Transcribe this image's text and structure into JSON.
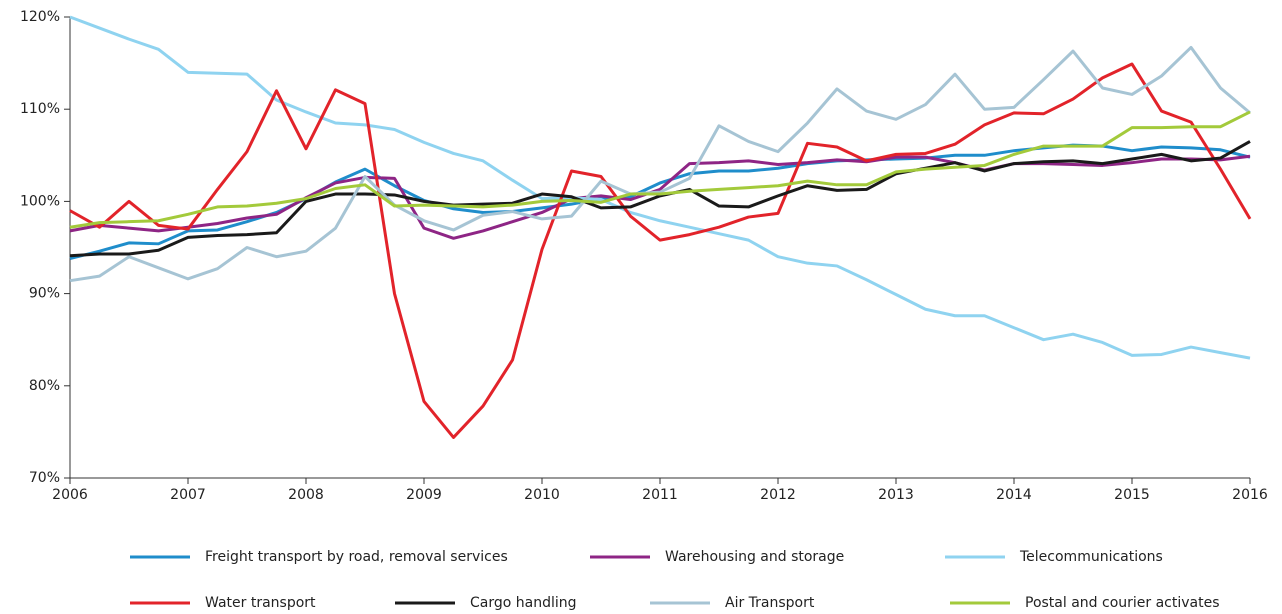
{
  "chart_data": {
    "type": "line",
    "x": [
      2006,
      2006.25,
      2006.5,
      2006.75,
      2007,
      2007.25,
      2007.5,
      2007.75,
      2008,
      2008.25,
      2008.5,
      2008.75,
      2009,
      2009.25,
      2009.5,
      2009.75,
      2010,
      2010.25,
      2010.5,
      2010.75,
      2011,
      2011.25,
      2011.5,
      2011.75,
      2012,
      2012.25,
      2012.5,
      2012.75,
      2013,
      2013.25,
      2013.5,
      2013.75,
      2014,
      2014.25,
      2014.5,
      2014.75,
      2015,
      2015.25,
      2015.5,
      2015.75,
      2016
    ],
    "xlim": [
      2006,
      2016
    ],
    "xticks": [
      2006,
      2007,
      2008,
      2009,
      2010,
      2011,
      2012,
      2013,
      2014,
      2015,
      2016
    ],
    "ylim": [
      70,
      120
    ],
    "yticks": [
      {
        "value": 70,
        "label": "70%"
      },
      {
        "value": 80,
        "label": "80%"
      },
      {
        "value": 90,
        "label": "90%"
      },
      {
        "value": 100,
        "label": "100%"
      },
      {
        "value": 110,
        "label": "110%"
      },
      {
        "value": 120,
        "label": "120%"
      }
    ],
    "series": [
      {
        "name": "Freight transport by road, removal services",
        "color": "#1f8dcb",
        "values": [
          93.8,
          94.6,
          95.5,
          95.4,
          96.8,
          96.9,
          97.8,
          98.8,
          100.3,
          102.1,
          103.5,
          101.7,
          100.1,
          99.2,
          98.8,
          98.9,
          99.3,
          99.7,
          100.3,
          100.5,
          102,
          103,
          103.3,
          103.3,
          103.6,
          104.1,
          104.4,
          104.5,
          104.6,
          104.7,
          105,
          105,
          105.5,
          105.8,
          106.1,
          106,
          105.5,
          105.9,
          105.8,
          105.6,
          104.8
        ]
      },
      {
        "name": "Warehousing and storage",
        "color": "#8e2585",
        "values": [
          96.8,
          97.4,
          97.1,
          96.8,
          97.2,
          97.6,
          98.2,
          98.6,
          100.4,
          102,
          102.6,
          102.5,
          97.1,
          96,
          96.8,
          97.8,
          98.8,
          100.3,
          100.6,
          100.2,
          101.3,
          104.1,
          104.2,
          104.4,
          104,
          104.2,
          104.5,
          104.3,
          104.8,
          104.8,
          104.2,
          103.4,
          104.1,
          104.1,
          104,
          103.9,
          104.2,
          104.6,
          104.6,
          104.5,
          104.9
        ]
      },
      {
        "name": "Telecommunications",
        "color": "#8fd3f0",
        "values": [
          120,
          118.8,
          117.6,
          116.5,
          114,
          113.9,
          113.8,
          111,
          109.7,
          108.5,
          108.3,
          107.8,
          106.4,
          105.2,
          104.4,
          102.3,
          100.3,
          100.4,
          100.2,
          98.8,
          97.9,
          97.2,
          96.5,
          95.8,
          94,
          93.3,
          93,
          91.5,
          89.9,
          88.3,
          87.6,
          87.6,
          86.3,
          85,
          85.6,
          84.7,
          83.3,
          83.4,
          84.2,
          83.6,
          83
        ]
      },
      {
        "name": "Water transport",
        "color": "#e2232a",
        "values": [
          99,
          97.2,
          100,
          97.4,
          97,
          101.3,
          105.4,
          112,
          105.7,
          112.1,
          110.6,
          90,
          78.3,
          74.4,
          77.8,
          82.8,
          94.8,
          103.3,
          102.7,
          98.4,
          95.8,
          96.4,
          97.2,
          98.3,
          98.7,
          106.3,
          105.9,
          104.4,
          105.1,
          105.2,
          106.2,
          108.3,
          109.6,
          109.5,
          111.1,
          113.4,
          114.9,
          109.8,
          108.6,
          103.5,
          98.1
        ]
      },
      {
        "name": "Cargo handling",
        "color": "#1a1a1a",
        "values": [
          94.1,
          94.3,
          94.3,
          94.7,
          96.1,
          96.3,
          96.4,
          96.6,
          100,
          100.8,
          100.8,
          100.7,
          100,
          99.6,
          99.7,
          99.8,
          100.8,
          100.5,
          99.3,
          99.4,
          100.6,
          101.3,
          99.5,
          99.4,
          100.6,
          101.7,
          101.2,
          101.3,
          103,
          103.6,
          104.2,
          103.3,
          104.1,
          104.3,
          104.4,
          104.1,
          104.6,
          105.1,
          104.4,
          104.7,
          106.5
        ]
      },
      {
        "name": "Air Transport",
        "color": "#a6c4d4",
        "values": [
          91.4,
          91.9,
          94,
          92.8,
          91.6,
          92.7,
          95,
          94,
          94.6,
          97.1,
          102.7,
          99.6,
          97.9,
          96.9,
          98.5,
          98.9,
          98.1,
          98.4,
          102.2,
          100.8,
          101,
          102.5,
          108.2,
          106.5,
          105.4,
          108.5,
          112.2,
          109.8,
          108.9,
          110.5,
          113.8,
          110,
          110.2,
          113.2,
          116.3,
          112.3,
          111.6,
          113.6,
          116.7,
          112.3,
          109.6
        ]
      },
      {
        "name": "Postal and courier activates",
        "color": "#a3ca3b",
        "values": [
          97.2,
          97.7,
          97.8,
          97.9,
          98.6,
          99.4,
          99.5,
          99.8,
          100.3,
          101.4,
          101.8,
          99.5,
          99.6,
          99.5,
          99.4,
          99.6,
          100,
          100.1,
          99.9,
          100.8,
          100.8,
          101.1,
          101.3,
          101.5,
          101.7,
          102.2,
          101.8,
          101.8,
          103.2,
          103.5,
          103.7,
          103.9,
          105.1,
          106,
          106,
          106,
          108,
          108,
          108.1,
          108.1,
          109.7
        ]
      }
    ]
  }
}
